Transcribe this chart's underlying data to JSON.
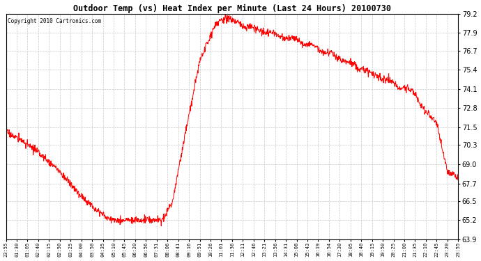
{
  "title": "Outdoor Temp (vs) Heat Index per Minute (Last 24 Hours) 20100730",
  "copyright": "Copyright 2010 Cartronics.com",
  "line_color": "#ff0000",
  "background_color": "#ffffff",
  "plot_background": "#ffffff",
  "grid_color": "#c8c8c8",
  "ylim": [
    63.9,
    79.2
  ],
  "yticks": [
    63.9,
    65.2,
    66.5,
    67.7,
    69.0,
    70.3,
    71.5,
    72.8,
    74.1,
    75.4,
    76.7,
    77.9,
    79.2
  ],
  "xtick_labels": [
    "23:55",
    "01:30",
    "01:05",
    "02:40",
    "02:15",
    "02:50",
    "03:25",
    "04:00",
    "03:50",
    "04:35",
    "05:10",
    "05:45",
    "06:20",
    "06:56",
    "07:31",
    "08:06",
    "08:41",
    "09:16",
    "09:51",
    "10:26",
    "11:01",
    "11:36",
    "12:11",
    "12:46",
    "13:21",
    "13:56",
    "14:31",
    "15:08",
    "15:43",
    "16:19",
    "16:54",
    "17:30",
    "18:05",
    "18:40",
    "19:15",
    "19:50",
    "20:25",
    "21:00",
    "21:35",
    "22:10",
    "22:45",
    "23:20",
    "23:55"
  ],
  "waypoints_t": [
    0,
    1.5,
    3,
    5,
    7,
    9.5,
    10.5,
    14.5,
    15.5,
    16.5,
    18,
    19.5,
    20.5,
    21.5,
    23,
    25,
    27,
    28.5,
    30,
    31,
    32,
    33,
    35,
    36.5,
    38,
    39,
    40,
    41,
    42
  ],
  "waypoints_v": [
    71.2,
    70.6,
    69.8,
    68.5,
    66.8,
    65.3,
    65.2,
    65.2,
    66.5,
    70.5,
    76.0,
    78.5,
    79.0,
    78.6,
    78.2,
    77.8,
    77.4,
    77.0,
    76.5,
    76.2,
    75.8,
    75.5,
    74.8,
    74.3,
    73.8,
    72.5,
    71.8,
    68.5,
    68.1
  ],
  "noise_std": 0.12,
  "noise_seed": 17
}
